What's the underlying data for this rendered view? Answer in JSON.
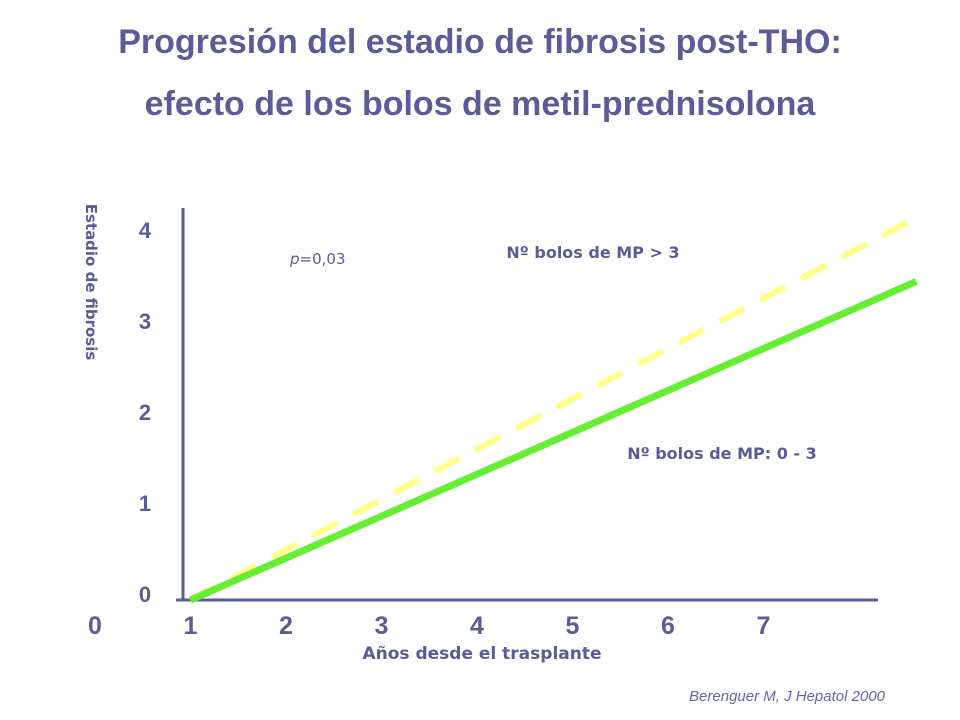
{
  "title_line1": "Progresión del estadio de fibrosis post-THO:",
  "title_line2": "efecto de los bolos de metil-prednisolona",
  "citation": "Berenguer M, J Hepatol 2000",
  "chart_data": {
    "type": "line",
    "title": "Progresión del estadio de fibrosis post-THO: efecto de los bolos de metil-prednisolona",
    "xlabel": "Años desde el trasplante",
    "ylabel": "Estadio de fibrosis",
    "x_ticks": [
      "0",
      "1",
      "2",
      "3",
      "4",
      "5",
      "6",
      "7"
    ],
    "y_ticks": [
      "0",
      "1",
      "2",
      "3",
      "4"
    ],
    "series": [
      {
        "name": "Nº bolos de MP > 3",
        "style": "dashed",
        "color": "#ffff88",
        "x": [
          1,
          8.6
        ],
        "y": [
          0,
          4.2
        ]
      },
      {
        "name": "Nº bolos de MP: 0 - 3",
        "style": "solid",
        "color": "#66ee33",
        "x": [
          1,
          8.6
        ],
        "y": [
          0,
          3.5
        ]
      }
    ],
    "annotation": {
      "prefix": "p",
      "text": "=0,03"
    },
    "label_color": "#5b5b98"
  }
}
